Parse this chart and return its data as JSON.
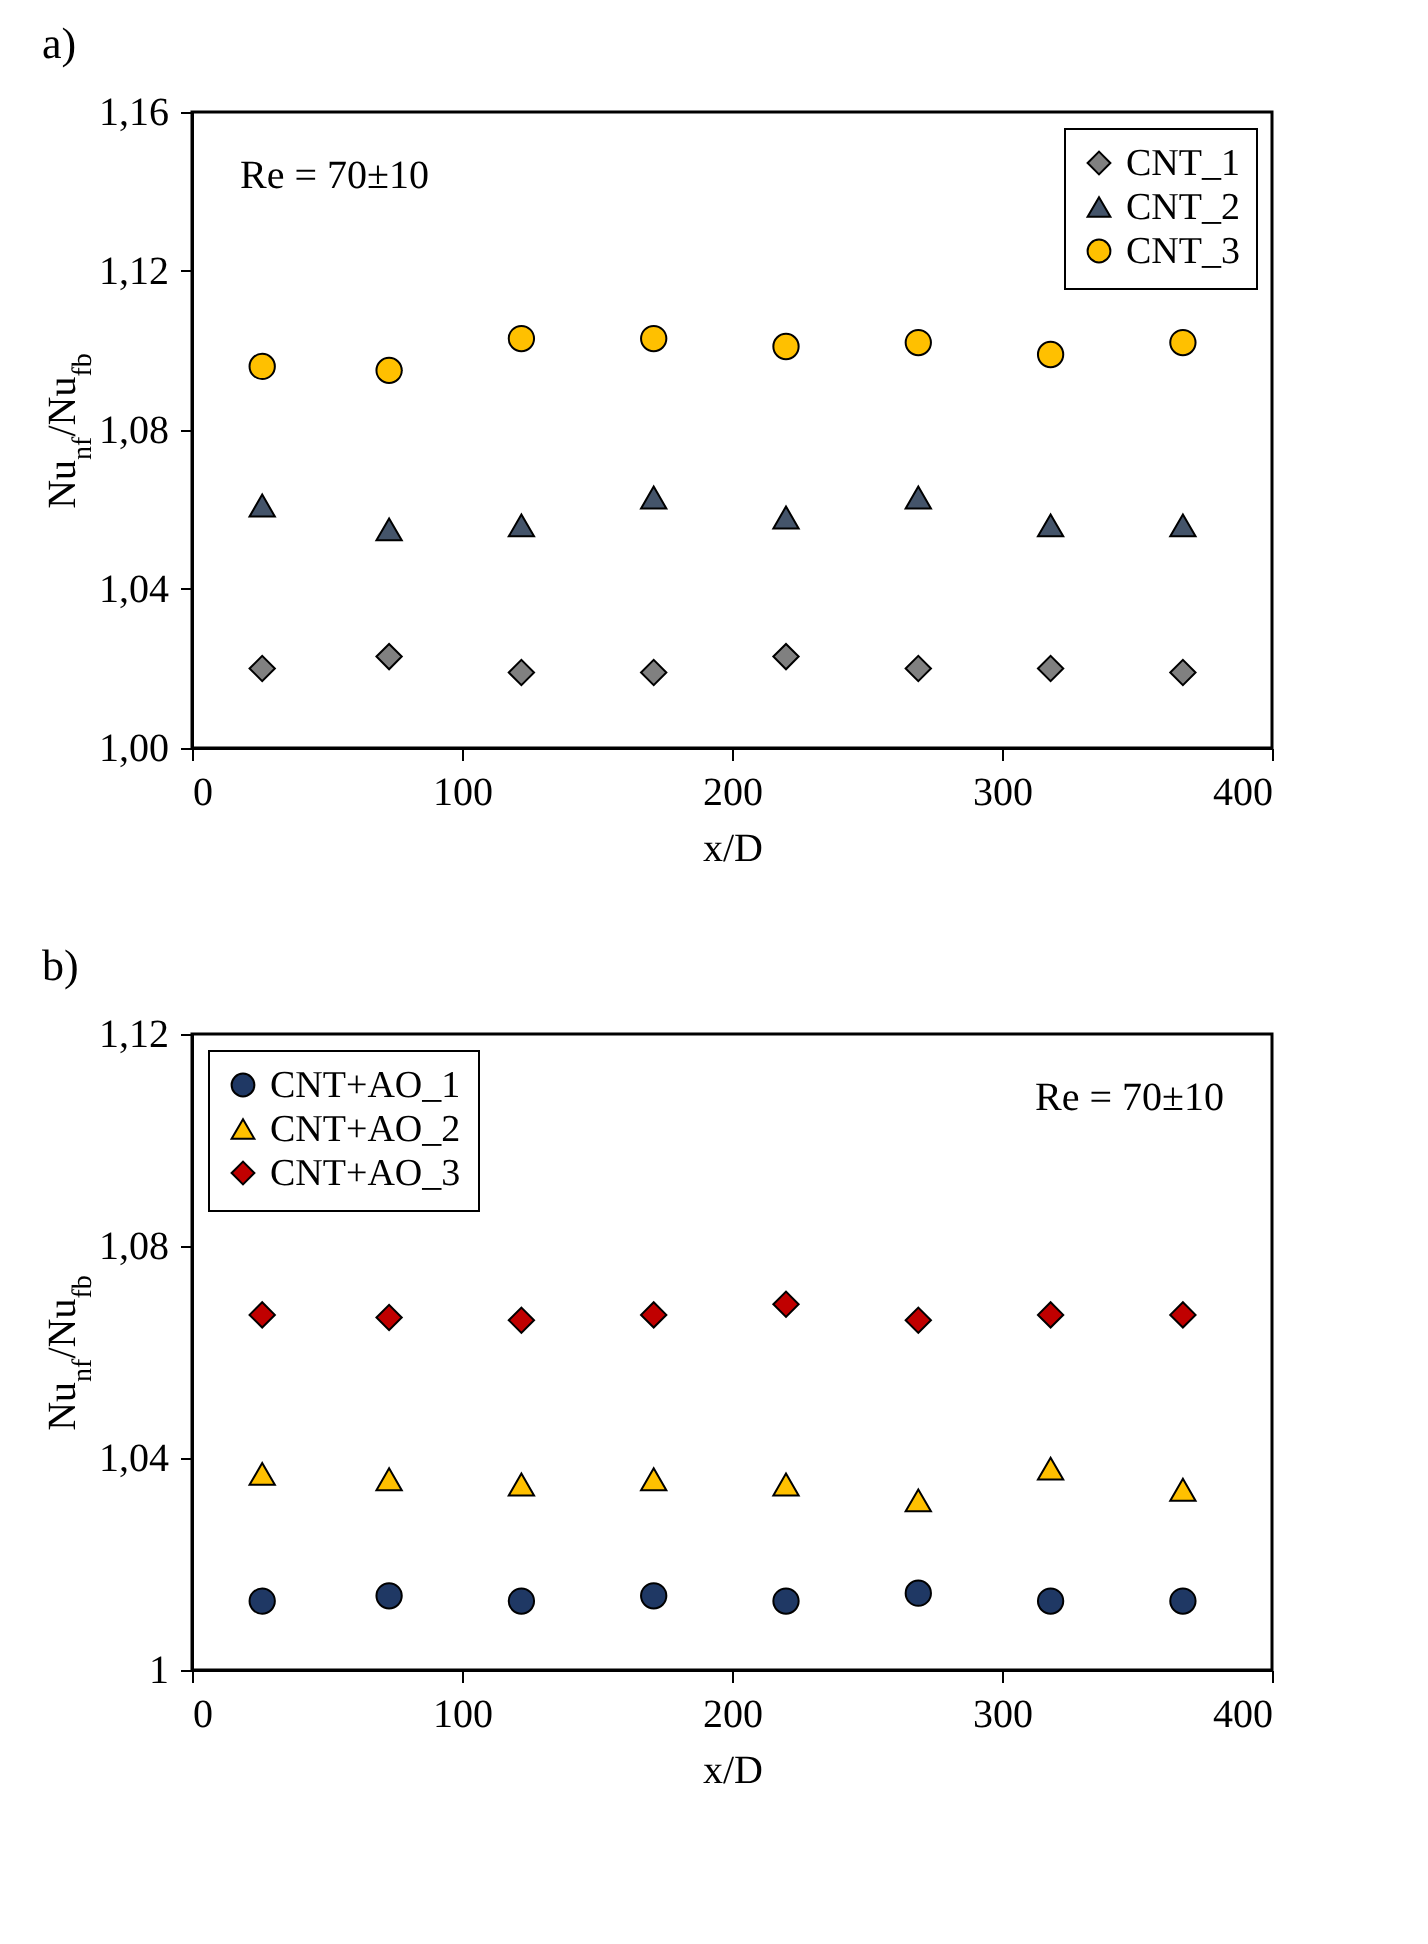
{
  "chart_data": [
    {
      "type": "scatter",
      "title": "a)",
      "xlabel": "x/D",
      "ylabel": "Nu$_{nf}$/Nu$_{fb}$",
      "annotations": [
        "Re = 70±10"
      ],
      "x": [
        26,
        73,
        122,
        171,
        220,
        269,
        318,
        367
      ],
      "series": [
        {
          "name": "CNT_1",
          "color": "#808080",
          "marker": "diamond",
          "values": [
            1.02,
            1.023,
            1.019,
            1.019,
            1.023,
            1.02,
            1.02,
            1.019
          ]
        },
        {
          "name": "CNT_2",
          "color": "#44546a",
          "marker": "triangle",
          "values": [
            1.061,
            1.055,
            1.056,
            1.063,
            1.058,
            1.063,
            1.056,
            1.056
          ]
        },
        {
          "name": "CNT_3",
          "color": "#ffc000",
          "marker": "circle",
          "values": [
            1.096,
            1.095,
            1.103,
            1.103,
            1.101,
            1.102,
            1.099,
            1.102
          ]
        }
      ],
      "xlim": [
        0,
        400
      ],
      "xticks": [
        0,
        100,
        200,
        300,
        400
      ],
      "ylim": [
        1.0,
        1.16
      ],
      "yticks": [
        {
          "value": 1.0,
          "label": "1,00"
        },
        {
          "value": 1.04,
          "label": "1,04"
        },
        {
          "value": 1.08,
          "label": "1,08"
        },
        {
          "value": 1.12,
          "label": "1,12"
        },
        {
          "value": 1.16,
          "label": "1,16"
        }
      ],
      "legend": "top right"
    },
    {
      "type": "scatter",
      "title": "b)",
      "xlabel": "x/D",
      "ylabel": "Nu$_{nf}$/Nu$_{fb}$",
      "annotations": [
        "Re = 70±10"
      ],
      "x": [
        26,
        73,
        122,
        171,
        220,
        269,
        318,
        367
      ],
      "series": [
        {
          "name": "CNT+AO_1",
          "color": "#1f3864",
          "marker": "circle",
          "values": [
            1.013,
            1.014,
            1.013,
            1.014,
            1.013,
            1.0145,
            1.013,
            1.013
          ]
        },
        {
          "name": "CNT+AO_2",
          "color": "#ffc000",
          "marker": "triangle",
          "values": [
            1.037,
            1.036,
            1.035,
            1.036,
            1.035,
            1.032,
            1.038,
            1.034
          ]
        },
        {
          "name": "CNT+AO_3",
          "color": "#c00000",
          "marker": "diamond",
          "values": [
            1.067,
            1.0665,
            1.066,
            1.067,
            1.069,
            1.066,
            1.067,
            1.067
          ]
        }
      ],
      "xlim": [
        0,
        400
      ],
      "xticks": [
        0,
        100,
        200,
        300,
        400
      ],
      "ylim": [
        1.0,
        1.12
      ],
      "yticks": [
        {
          "value": 1.0,
          "label": "1"
        },
        {
          "value": 1.04,
          "label": "1,04"
        },
        {
          "value": 1.08,
          "label": "1,08"
        },
        {
          "value": 1.12,
          "label": "1,12"
        }
      ],
      "legend": "top left"
    }
  ]
}
